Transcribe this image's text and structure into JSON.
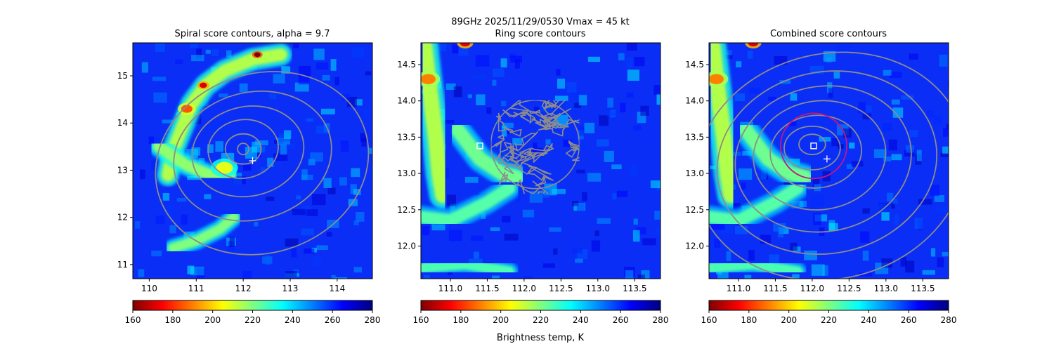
{
  "figure": {
    "suptitle_line1": "89GHz  2025/11/29/0530    Vmax = 45 kt",
    "colorbar_label": "Brightness temp, K",
    "colormap": "jet-reversed",
    "colors": [
      "#7f0000",
      "#ff0000",
      "#ff7f00",
      "#ffff00",
      "#7fff7f",
      "#00ffff",
      "#007fff",
      "#0000ff",
      "#00007f"
    ]
  },
  "chart_data": [
    {
      "type": "heatmap",
      "title": "Spiral score contours, alpha =  9.7",
      "xlim": [
        109.65,
        114.75
      ],
      "ylim": [
        10.7,
        15.7
      ],
      "xticks": [
        110,
        111,
        112,
        113,
        114
      ],
      "yticks": [
        11,
        12,
        13,
        14,
        15
      ],
      "value_range": [
        160,
        280
      ],
      "colorbar_ticks": [
        160,
        180,
        200,
        220,
        240,
        260,
        280
      ],
      "cold_features": [
        {
          "type": "band",
          "temp": 214,
          "width": 0.28,
          "points": [
            [
              110.4,
              12.9
            ],
            [
              110.5,
              13.4
            ],
            [
              110.7,
              13.9
            ],
            [
              110.9,
              14.4
            ],
            [
              111.2,
              14.8
            ],
            [
              111.6,
              15.1
            ],
            [
              112.2,
              15.35
            ],
            [
              112.8,
              15.45
            ]
          ]
        },
        {
          "type": "band",
          "temp": 218,
          "width": 0.25,
          "points": [
            [
              110.2,
              13.5
            ],
            [
              110.8,
              13.1
            ],
            [
              111.3,
              12.9
            ],
            [
              111.7,
              12.9
            ]
          ]
        },
        {
          "type": "band",
          "temp": 220,
          "width": 0.22,
          "points": [
            [
              110.5,
              11.35
            ],
            [
              111.0,
              11.5
            ],
            [
              111.5,
              11.75
            ],
            [
              111.8,
              12.0
            ]
          ]
        },
        {
          "type": "blob",
          "x": 111.6,
          "y": 13.05,
          "r": 0.18,
          "temp": 208
        },
        {
          "type": "blob",
          "x": 110.8,
          "y": 14.3,
          "r": 0.12,
          "temp": 185
        },
        {
          "type": "blob",
          "x": 111.15,
          "y": 14.8,
          "r": 0.08,
          "temp": 170
        },
        {
          "type": "blob",
          "x": 112.3,
          "y": 15.45,
          "r": 0.07,
          "temp": 160
        }
      ],
      "contours": [
        {
          "cx": 112.0,
          "cy": 13.45,
          "rx": 0.12,
          "ry": 0.12,
          "rot": 0
        },
        {
          "cx": 112.0,
          "cy": 13.45,
          "rx": 0.38,
          "ry": 0.32,
          "rot": 0
        },
        {
          "cx": 112.0,
          "cy": 13.45,
          "rx": 0.75,
          "ry": 0.62,
          "rot": -10
        },
        {
          "cx": 112.1,
          "cy": 13.4,
          "rx": 1.2,
          "ry": 0.95,
          "rot": -12
        },
        {
          "cx": 112.2,
          "cy": 13.3,
          "rx": 1.7,
          "ry": 1.35,
          "rot": -15
        },
        {
          "cx": 112.4,
          "cy": 13.15,
          "rx": 2.3,
          "ry": 1.9,
          "rot": -18
        }
      ],
      "markers": [
        {
          "type": "plus",
          "x": 112.2,
          "y": 13.2
        }
      ]
    },
    {
      "type": "heatmap",
      "title": "Ring score contours",
      "xlim": [
        110.6,
        113.85
      ],
      "ylim": [
        11.55,
        14.8
      ],
      "xticks": [
        111.0,
        111.5,
        112.0,
        112.5,
        113.0,
        113.5
      ],
      "yticks": [
        12.0,
        12.5,
        13.0,
        13.5,
        14.0,
        14.5
      ],
      "tick_labels_x": [
        "111.0",
        "111.5",
        "112.0",
        "112.5",
        "113.0",
        "113.5"
      ],
      "tick_labels_y": [
        "12.0",
        "12.5",
        "13.0",
        "13.5",
        "14.0",
        "14.5"
      ],
      "value_range": [
        160,
        280
      ],
      "colorbar_ticks": [
        160,
        180,
        200,
        220,
        240,
        260,
        280
      ],
      "cold_features": [
        {
          "type": "band",
          "temp": 214,
          "width": 0.22,
          "points": [
            [
              110.65,
              14.75
            ],
            [
              110.7,
              14.3
            ],
            [
              110.75,
              13.9
            ],
            [
              110.8,
              13.5
            ],
            [
              110.85,
              13.0
            ],
            [
              110.9,
              12.7
            ]
          ]
        },
        {
          "type": "band",
          "temp": 222,
          "width": 0.2,
          "points": [
            [
              111.1,
              13.6
            ],
            [
              111.4,
              13.2
            ],
            [
              111.7,
              13.0
            ],
            [
              111.9,
              12.95
            ]
          ]
        },
        {
          "type": "band",
          "temp": 225,
          "width": 0.18,
          "points": [
            [
              110.6,
              12.4
            ],
            [
              111.0,
              12.35
            ],
            [
              111.5,
              12.6
            ],
            [
              111.8,
              12.8
            ]
          ]
        },
        {
          "type": "band",
          "temp": 226,
          "width": 0.15,
          "points": [
            [
              110.6,
              11.7
            ],
            [
              111.2,
              11.75
            ],
            [
              111.8,
              11.65
            ]
          ]
        },
        {
          "type": "blob",
          "x": 110.7,
          "y": 14.3,
          "r": 0.1,
          "temp": 190
        },
        {
          "type": "blob",
          "x": 111.2,
          "y": 14.8,
          "r": 0.07,
          "temp": 172
        }
      ],
      "ring_region": {
        "cx": 112.15,
        "cy": 13.4,
        "r": 0.6,
        "ymin": 12.72
      },
      "markers": [
        {
          "type": "square",
          "x": 111.4,
          "y": 13.38
        }
      ]
    },
    {
      "type": "heatmap",
      "title": "Combined score contours",
      "xlim": [
        110.6,
        113.85
      ],
      "ylim": [
        11.55,
        14.8
      ],
      "xticks": [
        111.0,
        111.5,
        112.0,
        112.5,
        113.0,
        113.5
      ],
      "yticks": [
        12.0,
        12.5,
        13.0,
        13.5,
        14.0,
        14.5
      ],
      "tick_labels_x": [
        "111.0",
        "111.5",
        "112.0",
        "112.5",
        "113.0",
        "113.5"
      ],
      "tick_labels_y": [
        "12.0",
        "12.5",
        "13.0",
        "13.5",
        "14.0",
        "14.5"
      ],
      "value_range": [
        160,
        280
      ],
      "colorbar_ticks": [
        160,
        180,
        200,
        220,
        240,
        260,
        280
      ],
      "cold_features": [
        {
          "type": "band",
          "temp": 214,
          "width": 0.22,
          "points": [
            [
              110.65,
              14.75
            ],
            [
              110.7,
              14.3
            ],
            [
              110.75,
              13.9
            ],
            [
              110.8,
              13.5
            ],
            [
              110.85,
              13.0
            ],
            [
              110.9,
              12.7
            ]
          ]
        },
        {
          "type": "band",
          "temp": 222,
          "width": 0.2,
          "points": [
            [
              111.1,
              13.6
            ],
            [
              111.4,
              13.2
            ],
            [
              111.7,
              13.0
            ],
            [
              111.9,
              12.95
            ]
          ]
        },
        {
          "type": "band",
          "temp": 225,
          "width": 0.18,
          "points": [
            [
              110.6,
              12.4
            ],
            [
              111.0,
              12.35
            ],
            [
              111.5,
              12.6
            ],
            [
              111.8,
              12.8
            ]
          ]
        },
        {
          "type": "band",
          "temp": 226,
          "width": 0.15,
          "points": [
            [
              110.6,
              11.7
            ],
            [
              111.2,
              11.75
            ],
            [
              111.8,
              11.65
            ]
          ]
        },
        {
          "type": "blob",
          "x": 110.7,
          "y": 14.3,
          "r": 0.1,
          "temp": 190
        },
        {
          "type": "blob",
          "x": 111.2,
          "y": 14.8,
          "r": 0.07,
          "temp": 172
        }
      ],
      "contours": [
        {
          "cx": 112.0,
          "cy": 13.4,
          "rx": 0.18,
          "ry": 0.14,
          "rot": 0
        },
        {
          "cx": 112.0,
          "cy": 13.35,
          "rx": 0.38,
          "ry": 0.3,
          "rot": 0
        },
        {
          "cx": 112.05,
          "cy": 13.3,
          "rx": 0.62,
          "ry": 0.5,
          "rot": -5
        },
        {
          "cx": 112.1,
          "cy": 13.25,
          "rx": 0.9,
          "ry": 0.75,
          "rot": -8
        },
        {
          "cx": 112.15,
          "cy": 13.2,
          "rx": 1.2,
          "ry": 1.0,
          "rot": -10
        },
        {
          "cx": 112.2,
          "cy": 13.15,
          "rx": 1.5,
          "ry": 1.25,
          "rot": -12
        },
        {
          "cx": 112.25,
          "cy": 13.1,
          "rx": 1.85,
          "ry": 1.55,
          "rot": -14
        }
      ],
      "fit_circle": {
        "cx": 112.02,
        "cy": 13.38,
        "r": 0.45
      },
      "markers": [
        {
          "type": "square",
          "x": 112.02,
          "y": 13.38
        },
        {
          "type": "plus",
          "x": 112.2,
          "y": 13.2
        }
      ]
    }
  ]
}
